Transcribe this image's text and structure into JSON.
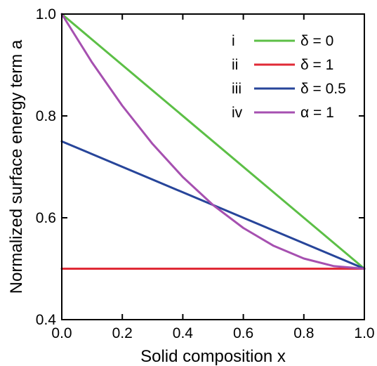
{
  "chart_data": {
    "type": "line",
    "xlabel": "Solid composition x",
    "ylabel": "Normalized surface energy term a",
    "xlim": [
      0.0,
      1.0
    ],
    "ylim": [
      0.4,
      1.0
    ],
    "x_ticks": [
      "0.0",
      "0.2",
      "0.4",
      "0.6",
      "0.8",
      "1.0"
    ],
    "y_ticks": [
      "0.4",
      "0.6",
      "0.8",
      "1.0"
    ],
    "x_tick_values": [
      0.0,
      0.2,
      0.4,
      0.6,
      0.8,
      1.0
    ],
    "y_tick_values": [
      0.4,
      0.6,
      0.8,
      1.0
    ],
    "legend_position": "top-right",
    "grid": false,
    "series": [
      {
        "id": "i",
        "name": "δ = 0",
        "color": "#5cbf46",
        "x": [
          0.0,
          1.0
        ],
        "y": [
          1.0,
          0.5
        ]
      },
      {
        "id": "ii",
        "name": "δ = 1",
        "color": "#e02a36",
        "x": [
          0.0,
          1.0
        ],
        "y": [
          0.5,
          0.5
        ]
      },
      {
        "id": "iii",
        "name": "δ = 0.5",
        "color": "#27459a",
        "x": [
          0.0,
          1.0
        ],
        "y": [
          0.75,
          0.5
        ]
      },
      {
        "id": "iv",
        "name": "α = 1",
        "color": "#a650b0",
        "x": [
          0.0,
          0.1,
          0.2,
          0.3,
          0.4,
          0.5,
          0.6,
          0.7,
          0.8,
          0.9,
          1.0
        ],
        "y": [
          1.0,
          0.905,
          0.82,
          0.745,
          0.68,
          0.625,
          0.58,
          0.545,
          0.52,
          0.505,
          0.5
        ]
      }
    ]
  }
}
